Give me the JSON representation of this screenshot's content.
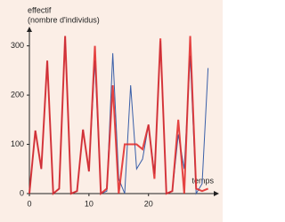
{
  "chart_data": {
    "type": "line",
    "y_label_line1": "effectif",
    "y_label_line2": "(nombre d'individus)",
    "x_label": "temps",
    "x": [
      0,
      1,
      2,
      3,
      4,
      5,
      6,
      7,
      8,
      9,
      10,
      11,
      12,
      13,
      14,
      15,
      16,
      17,
      18,
      19,
      20,
      21,
      22,
      23,
      24,
      25,
      26,
      27,
      28,
      29,
      30
    ],
    "series": [
      {
        "color": "#3a5fa8",
        "width": 1,
        "values": [
          0,
          128,
          50,
          270,
          0,
          10,
          320,
          0,
          5,
          130,
          45,
          270,
          0,
          5,
          285,
          30,
          0,
          220,
          50,
          70,
          140,
          40,
          310,
          0,
          5,
          120,
          50,
          280,
          0,
          20,
          255
        ]
      },
      {
        "color": "#e02424",
        "width": 2,
        "values": [
          0,
          128,
          50,
          270,
          0,
          10,
          320,
          0,
          5,
          130,
          45,
          300,
          0,
          10,
          220,
          0,
          100,
          100,
          100,
          90,
          140,
          30,
          315,
          0,
          5,
          150,
          0,
          320,
          10,
          5,
          10
        ]
      }
    ],
    "xlim": [
      0,
      32
    ],
    "ylim": [
      0,
      330
    ],
    "xticks": [
      0,
      10,
      20
    ],
    "yticks": [
      0,
      100,
      200,
      300
    ]
  }
}
